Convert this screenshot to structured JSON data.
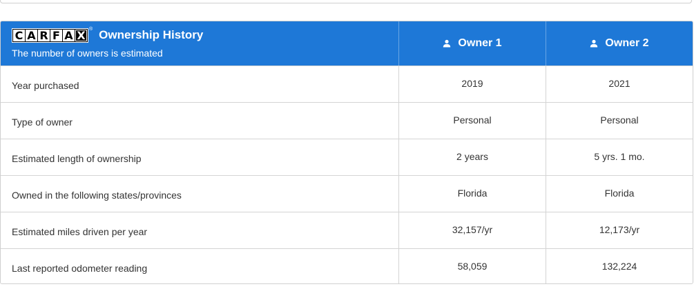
{
  "header": {
    "logo_letters": [
      "C",
      "A",
      "R",
      "F",
      "A",
      "X"
    ],
    "title": "Ownership History",
    "subtitle": "The number of owners is estimated",
    "owners": [
      "Owner 1",
      "Owner 2"
    ],
    "owner_icon": "person-icon",
    "accent_color": "#1e78d7"
  },
  "rows": [
    {
      "label": "Year purchased",
      "owner1": "2019",
      "owner2": "2021"
    },
    {
      "label": "Type of owner",
      "owner1": "Personal",
      "owner2": "Personal"
    },
    {
      "label": "Estimated length of ownership",
      "owner1": "2 years",
      "owner2": "5 yrs. 1 mo."
    },
    {
      "label": "Owned in the following states/provinces",
      "owner1": "Florida",
      "owner2": "Florida"
    },
    {
      "label": "Estimated miles driven per year",
      "owner1": "32,157/yr",
      "owner2": "12,173/yr"
    },
    {
      "label": "Last reported odometer reading",
      "owner1": "58,059",
      "owner2": "132,224"
    }
  ]
}
